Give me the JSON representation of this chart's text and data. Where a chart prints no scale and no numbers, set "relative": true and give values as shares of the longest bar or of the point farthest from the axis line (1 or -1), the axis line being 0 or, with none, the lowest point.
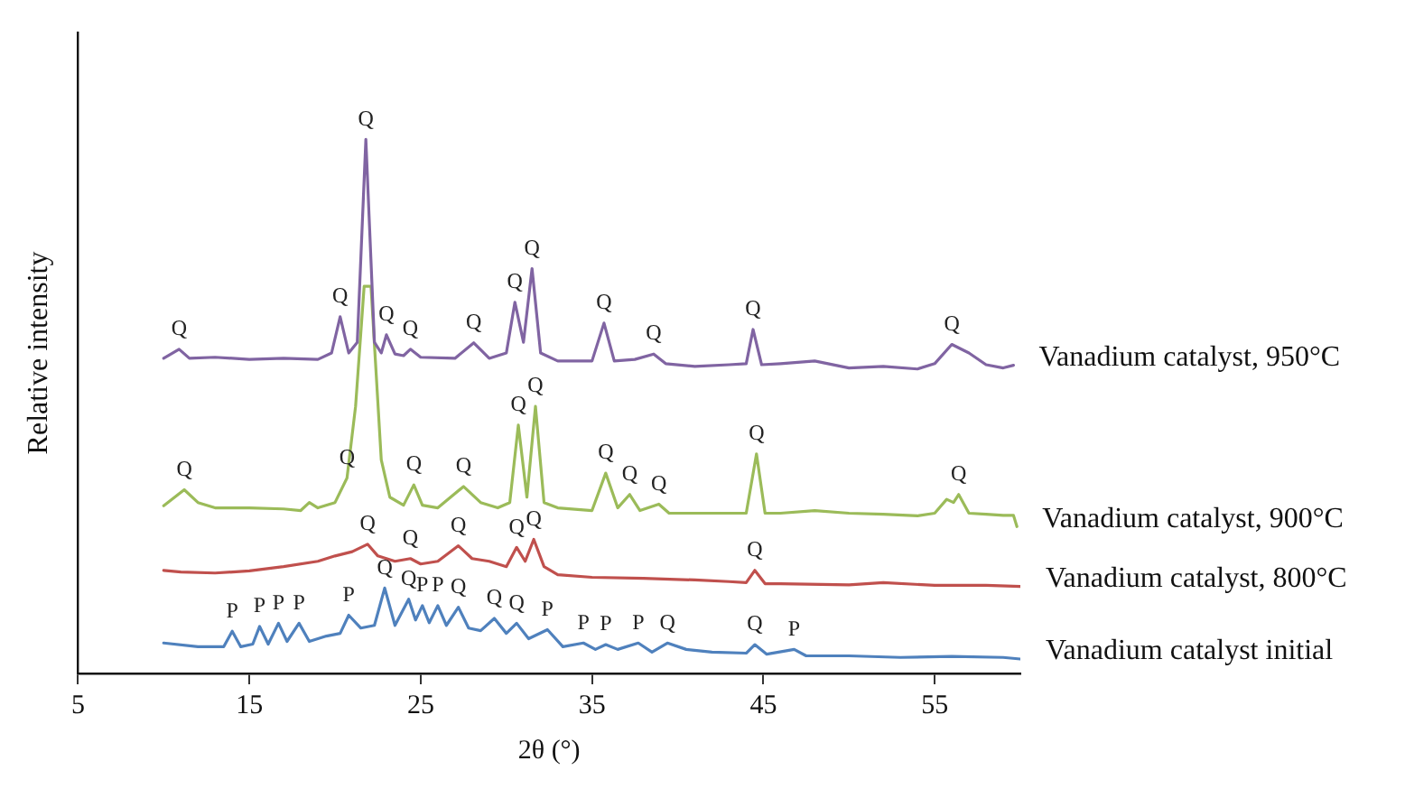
{
  "chart_data": {
    "type": "line",
    "relative": true,
    "xlabel": "2θ (°)",
    "ylabel": "Relative intensity",
    "xlim": [
      5,
      60
    ],
    "xticks": [
      5,
      15,
      25,
      35,
      45,
      55
    ],
    "grid": false,
    "legend": false,
    "marker": "none",
    "line_style": "solid",
    "series": [
      {
        "name": "Vanadium catalyst, 950°C",
        "color": "#8064a2",
        "x": [
          10,
          10.9,
          11.5,
          13,
          15,
          17,
          19,
          19.8,
          20.3,
          20.8,
          21.3,
          21.8,
          22.3,
          22.7,
          23.0,
          23.5,
          24.0,
          24.4,
          25,
          27,
          28.1,
          29,
          30,
          30.5,
          31,
          31.5,
          32,
          33,
          35,
          35.7,
          36.3,
          37.5,
          38.6,
          39.3,
          41,
          43,
          44,
          44.4,
          44.9,
          46,
          48,
          50,
          52,
          54,
          55,
          56.0,
          57,
          58,
          59,
          59.6
        ],
        "values": [
          0.59,
          0.607,
          0.59,
          0.592,
          0.588,
          0.59,
          0.588,
          0.6,
          0.668,
          0.6,
          0.62,
          1.0,
          0.62,
          0.6,
          0.634,
          0.598,
          0.595,
          0.607,
          0.592,
          0.59,
          0.619,
          0.59,
          0.6,
          0.695,
          0.62,
          0.758,
          0.6,
          0.585,
          0.585,
          0.656,
          0.585,
          0.588,
          0.598,
          0.58,
          0.575,
          0.578,
          0.58,
          0.644,
          0.578,
          0.58,
          0.585,
          0.572,
          0.575,
          0.57,
          0.58,
          0.616,
          0.6,
          0.578,
          0.572,
          0.577
        ]
      },
      {
        "name": "Vanadium catalyst, 900°C",
        "color": "#9bbb59",
        "x": [
          10,
          11.2,
          12,
          13,
          15,
          17,
          18,
          18.5,
          19,
          20,
          20.7,
          21.2,
          21.7,
          22.1,
          22.7,
          23.2,
          24,
          24.6,
          25.1,
          26,
          27.5,
          28.5,
          29.5,
          30.2,
          30.7,
          31.2,
          31.7,
          32.2,
          33,
          35,
          35.8,
          36.5,
          37.2,
          37.8,
          38.9,
          39.5,
          41,
          43,
          44,
          44.6,
          45.1,
          46,
          48,
          50,
          52,
          54,
          55,
          55.7,
          56.1,
          56.4,
          57,
          58,
          59,
          59.6,
          59.8
        ],
        "values": [
          0.314,
          0.344,
          0.32,
          0.31,
          0.31,
          0.308,
          0.305,
          0.32,
          0.31,
          0.32,
          0.366,
          0.5,
          0.725,
          0.725,
          0.4,
          0.33,
          0.315,
          0.353,
          0.315,
          0.31,
          0.35,
          0.32,
          0.31,
          0.32,
          0.465,
          0.33,
          0.5,
          0.32,
          0.31,
          0.305,
          0.375,
          0.31,
          0.335,
          0.305,
          0.317,
          0.3,
          0.3,
          0.3,
          0.3,
          0.411,
          0.3,
          0.3,
          0.305,
          0.3,
          0.298,
          0.295,
          0.3,
          0.326,
          0.32,
          0.335,
          0.3,
          0.298,
          0.296,
          0.296,
          0.275
        ]
      },
      {
        "name": "Vanadium catalyst, 800°C",
        "color": "#c0504d",
        "x": [
          10,
          11,
          13,
          15,
          17,
          19,
          20,
          21,
          21.9,
          22.5,
          23.5,
          24.4,
          25,
          26,
          27.2,
          28,
          29,
          30,
          30.6,
          31.1,
          31.6,
          32.2,
          33,
          35,
          38,
          41,
          43,
          44,
          44.5,
          45.1,
          46,
          50,
          52,
          55,
          58,
          60
        ],
        "values": [
          0.193,
          0.19,
          0.188,
          0.192,
          0.2,
          0.21,
          0.22,
          0.228,
          0.242,
          0.22,
          0.21,
          0.215,
          0.205,
          0.21,
          0.239,
          0.215,
          0.21,
          0.2,
          0.236,
          0.21,
          0.251,
          0.2,
          0.185,
          0.18,
          0.178,
          0.175,
          0.172,
          0.17,
          0.193,
          0.168,
          0.168,
          0.166,
          0.17,
          0.165,
          0.165,
          0.163
        ]
      },
      {
        "name": "Vanadium catalyst initial",
        "color": "#4f81bd",
        "x": [
          10,
          12,
          13.5,
          14,
          14.5,
          15.2,
          15.6,
          16.1,
          16.7,
          17.2,
          17.9,
          18.5,
          19.5,
          20.3,
          20.8,
          21.5,
          22.3,
          22.9,
          23.5,
          24.3,
          24.7,
          25.1,
          25.5,
          26.0,
          26.5,
          27.2,
          27.8,
          28.5,
          29.3,
          30,
          30.6,
          31.3,
          32.4,
          33.3,
          34.5,
          35.2,
          35.8,
          36.5,
          37.7,
          38.5,
          39.4,
          40.5,
          42,
          44,
          44.5,
          45.2,
          46.8,
          47.5,
          50,
          53,
          56,
          59,
          60
        ],
        "values": [
          0.057,
          0.05,
          0.05,
          0.079,
          0.05,
          0.055,
          0.088,
          0.055,
          0.094,
          0.06,
          0.094,
          0.06,
          0.07,
          0.075,
          0.109,
          0.085,
          0.09,
          0.16,
          0.09,
          0.139,
          0.1,
          0.127,
          0.095,
          0.127,
          0.09,
          0.124,
          0.085,
          0.08,
          0.103,
          0.075,
          0.094,
          0.065,
          0.082,
          0.05,
          0.057,
          0.045,
          0.054,
          0.045,
          0.057,
          0.04,
          0.057,
          0.045,
          0.04,
          0.038,
          0.054,
          0.036,
          0.045,
          0.033,
          0.033,
          0.03,
          0.032,
          0.03,
          0.027
        ]
      }
    ],
    "annotations": [
      {
        "text": "Q",
        "x": 10.9,
        "y": 0.607
      },
      {
        "text": "Q",
        "x": 20.3,
        "y": 0.668
      },
      {
        "text": "Q",
        "x": 21.8,
        "y": 1.0
      },
      {
        "text": "Q",
        "x": 23.0,
        "y": 0.634
      },
      {
        "text": "Q",
        "x": 24.4,
        "y": 0.607
      },
      {
        "text": "Q",
        "x": 28.1,
        "y": 0.619
      },
      {
        "text": "Q",
        "x": 30.5,
        "y": 0.695
      },
      {
        "text": "Q",
        "x": 31.5,
        "y": 0.758
      },
      {
        "text": "Q",
        "x": 35.7,
        "y": 0.656
      },
      {
        "text": "Q",
        "x": 38.6,
        "y": 0.598
      },
      {
        "text": "Q",
        "x": 44.4,
        "y": 0.644
      },
      {
        "text": "Q",
        "x": 56.0,
        "y": 0.616
      },
      {
        "text": "Q",
        "x": 11.2,
        "y": 0.344
      },
      {
        "text": "Q",
        "x": 20.7,
        "y": 0.366
      },
      {
        "text": "Q",
        "x": 24.6,
        "y": 0.353
      },
      {
        "text": "Q",
        "x": 27.5,
        "y": 0.35
      },
      {
        "text": "Q",
        "x": 30.7,
        "y": 0.465
      },
      {
        "text": "Q",
        "x": 31.7,
        "y": 0.5
      },
      {
        "text": "Q",
        "x": 35.8,
        "y": 0.375
      },
      {
        "text": "Q",
        "x": 37.2,
        "y": 0.335
      },
      {
        "text": "Q",
        "x": 38.9,
        "y": 0.317
      },
      {
        "text": "Q",
        "x": 44.6,
        "y": 0.411
      },
      {
        "text": "Q",
        "x": 56.4,
        "y": 0.335
      },
      {
        "text": "Q",
        "x": 21.9,
        "y": 0.242
      },
      {
        "text": "Q",
        "x": 24.4,
        "y": 0.215
      },
      {
        "text": "Q",
        "x": 27.2,
        "y": 0.239
      },
      {
        "text": "Q",
        "x": 30.6,
        "y": 0.236
      },
      {
        "text": "Q",
        "x": 31.6,
        "y": 0.251
      },
      {
        "text": "Q",
        "x": 44.5,
        "y": 0.193
      },
      {
        "text": "P",
        "x": 14.0,
        "y": 0.079
      },
      {
        "text": "P",
        "x": 15.6,
        "y": 0.088
      },
      {
        "text": "P",
        "x": 16.7,
        "y": 0.094
      },
      {
        "text": "P",
        "x": 17.9,
        "y": 0.094
      },
      {
        "text": "P",
        "x": 20.8,
        "y": 0.109
      },
      {
        "text": "Q",
        "x": 22.9,
        "y": 0.16
      },
      {
        "text": "Q",
        "x": 24.3,
        "y": 0.139
      },
      {
        "text": "P",
        "x": 25.1,
        "y": 0.127
      },
      {
        "text": "P",
        "x": 26.0,
        "y": 0.127
      },
      {
        "text": "Q",
        "x": 27.2,
        "y": 0.124
      },
      {
        "text": "Q",
        "x": 29.3,
        "y": 0.103
      },
      {
        "text": "Q",
        "x": 30.6,
        "y": 0.094
      },
      {
        "text": "P",
        "x": 32.4,
        "y": 0.082
      },
      {
        "text": "P",
        "x": 34.5,
        "y": 0.057
      },
      {
        "text": "P",
        "x": 35.8,
        "y": 0.054
      },
      {
        "text": "P",
        "x": 37.7,
        "y": 0.057
      },
      {
        "text": "Q",
        "x": 39.4,
        "y": 0.057
      },
      {
        "text": "Q",
        "x": 44.5,
        "y": 0.054
      },
      {
        "text": "P",
        "x": 46.8,
        "y": 0.045
      }
    ]
  }
}
